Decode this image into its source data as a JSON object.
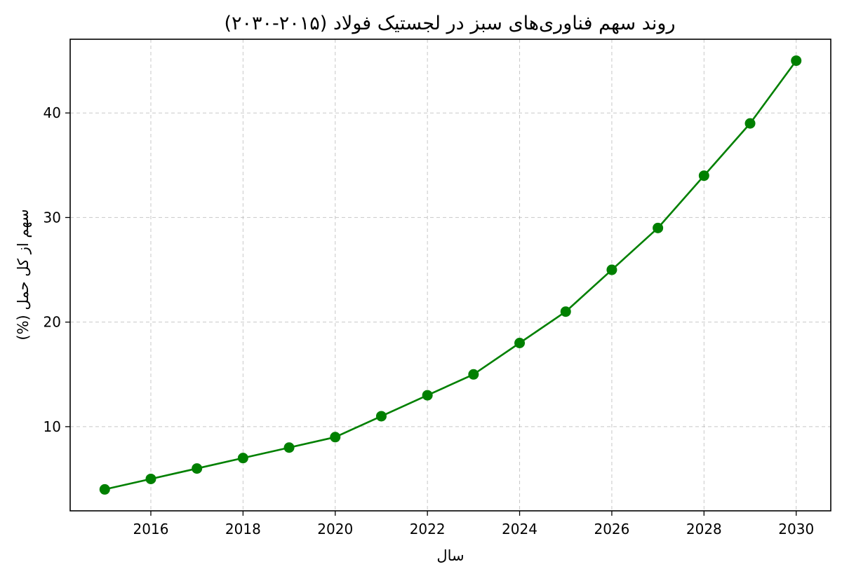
{
  "chart_data": {
    "type": "line",
    "title": "روند سهم فناوری‌های سبز در لجستیک فولاد (۲۰۱۵-۲۰۳۰)",
    "xlabel": "سال",
    "ylabel": "سهم از کل حمل (%)",
    "x": [
      2015,
      2016,
      2017,
      2018,
      2019,
      2020,
      2021,
      2022,
      2023,
      2024,
      2025,
      2026,
      2027,
      2028,
      2029,
      2030
    ],
    "series": [
      {
        "values": [
          4,
          5,
          6,
          7,
          8,
          9,
          11,
          13,
          15,
          18,
          21,
          25,
          29,
          34,
          39,
          45
        ],
        "color": "#008000",
        "marker": "circle"
      }
    ],
    "xlim": [
      2014.25,
      2030.75
    ],
    "ylim": [
      1.95,
      47.05
    ],
    "xticks": [
      "2016",
      "2018",
      "2020",
      "2022",
      "2024",
      "2026",
      "2028",
      "2030"
    ],
    "yticks": [
      "10",
      "20",
      "30",
      "40"
    ],
    "grid": true,
    "legend": "none"
  }
}
